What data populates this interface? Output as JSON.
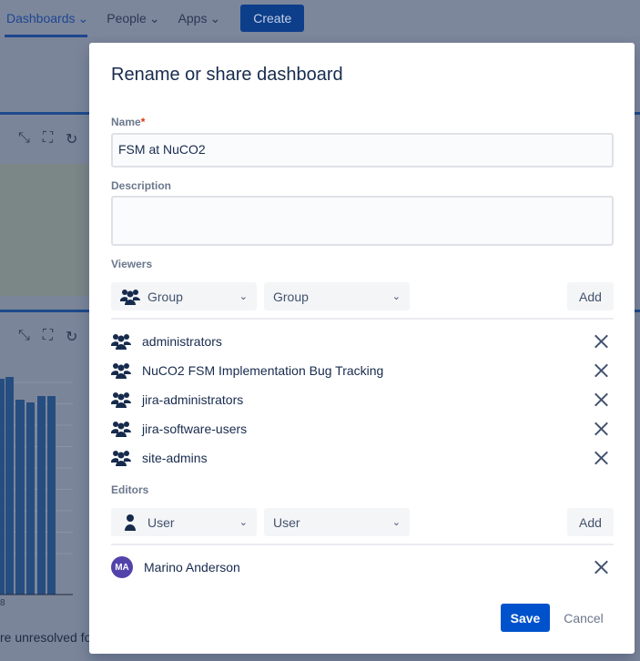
{
  "nav": {
    "items": [
      {
        "label": "Dashboards"
      },
      {
        "label": "People"
      },
      {
        "label": "Apps"
      }
    ],
    "create_label": "Create"
  },
  "background": {
    "footer_text": "re unresolved fo",
    "axis_fragment": "8"
  },
  "modal": {
    "title": "Rename or share dashboard",
    "name_label": "Name",
    "required_mark": "*",
    "name_value": "FSM at NuCO2",
    "description_label": "Description",
    "description_value": "",
    "viewers": {
      "label": "Viewers",
      "type_select": "Group",
      "value_select_placeholder": "Group",
      "add_label": "Add",
      "items": [
        {
          "name": "administrators"
        },
        {
          "name": "NuCO2 FSM Implementation Bug Tracking"
        },
        {
          "name": "jira-administrators"
        },
        {
          "name": "jira-software-users"
        },
        {
          "name": "site-admins"
        }
      ]
    },
    "editors": {
      "label": "Editors",
      "type_select": "User",
      "value_select_placeholder": "User",
      "add_label": "Add",
      "items": [
        {
          "name": "Marino Anderson",
          "initials": "MA"
        }
      ]
    },
    "save_label": "Save",
    "cancel_label": "Cancel"
  },
  "colors": {
    "primary": "#0052cc",
    "avatar": "#5243aa",
    "overlay": "#091e42"
  }
}
